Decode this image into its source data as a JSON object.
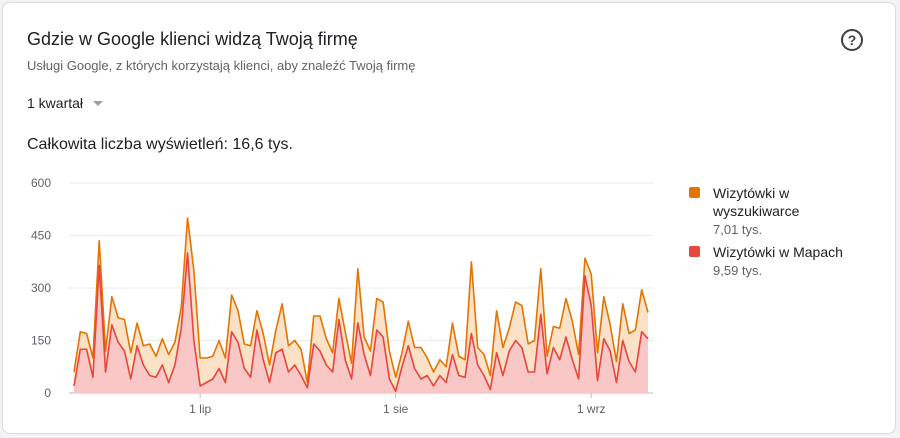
{
  "header": {
    "title": "Gdzie w Google klienci widzą Twoją firmę",
    "subtitle": "Usługi Google, z których korzystają klienci, aby znaleźć Twoją firmę",
    "help_icon": "help-circle-icon",
    "help_glyph": "?"
  },
  "period": {
    "selected": "1 kwartał"
  },
  "summary": {
    "total_label": "Całkowita liczba wyświetleń: 16,6 tys."
  },
  "colors": {
    "search": "#e37400",
    "search_fill": "#fbe1c6",
    "maps": "#e8453c",
    "maps_fill": "#f9c7c5",
    "grid": "#ebebeb",
    "axis_text": "#5f6368"
  },
  "legend": [
    {
      "name": "Wizytówki w wyszukiwarce",
      "name_lines": [
        "Wizytówki w",
        "wyszukiwarce"
      ],
      "value": "7,01 tys.",
      "color": "#e37400"
    },
    {
      "name": "Wizytówki w Mapach",
      "name_lines": [
        "Wizytówki w Mapach"
      ],
      "value": "9,59 tys.",
      "color": "#e8453c"
    }
  ],
  "chart_data": {
    "type": "area",
    "stacked": true,
    "ylim": [
      0,
      600
    ],
    "yticks": [
      "0",
      "150",
      "300",
      "450",
      "600"
    ],
    "xtick_labels": [
      {
        "label": "1 lip",
        "index": 20
      },
      {
        "label": "1 sie",
        "index": 51
      },
      {
        "label": "1 wrz",
        "index": 82
      }
    ],
    "series": [
      {
        "name": "Wizytówki w Mapach",
        "values": [
          20,
          125,
          125,
          45,
          365,
          60,
          195,
          145,
          120,
          40,
          135,
          80,
          50,
          45,
          80,
          30,
          80,
          185,
          400,
          150,
          20,
          30,
          40,
          70,
          30,
          175,
          145,
          70,
          45,
          180,
          95,
          30,
          115,
          125,
          60,
          80,
          50,
          15,
          140,
          120,
          80,
          60,
          210,
          95,
          40,
          200,
          110,
          50,
          180,
          160,
          40,
          5,
          75,
          135,
          70,
          40,
          50,
          20,
          50,
          30,
          110,
          50,
          45,
          170,
          80,
          50,
          10,
          115,
          50,
          120,
          150,
          130,
          60,
          60,
          225,
          55,
          130,
          95,
          160,
          95,
          40,
          335,
          250,
          35,
          155,
          120,
          30,
          150,
          90,
          60,
          175,
          155
        ]
      },
      {
        "name": "Wizytówki w wyszukiwarce",
        "values": [
          40,
          50,
          45,
          55,
          70,
          60,
          80,
          70,
          90,
          75,
          65,
          55,
          90,
          60,
          75,
          80,
          65,
          60,
          100,
          200,
          80,
          70,
          65,
          80,
          70,
          105,
          90,
          70,
          90,
          55,
          75,
          50,
          65,
          130,
          75,
          70,
          75,
          15,
          80,
          100,
          75,
          55,
          60,
          80,
          45,
          155,
          50,
          70,
          90,
          100,
          80,
          40,
          40,
          70,
          60,
          90,
          50,
          40,
          45,
          45,
          90,
          55,
          50,
          205,
          50,
          60,
          40,
          120,
          80,
          65,
          110,
          120,
          80,
          90,
          130,
          50,
          60,
          90,
          110,
          110,
          70,
          50,
          90,
          80,
          120,
          75,
          60,
          105,
          80,
          120,
          120,
          75
        ]
      }
    ],
    "xlabel": "",
    "ylabel": "",
    "grid": true,
    "legend_placement": "right"
  }
}
